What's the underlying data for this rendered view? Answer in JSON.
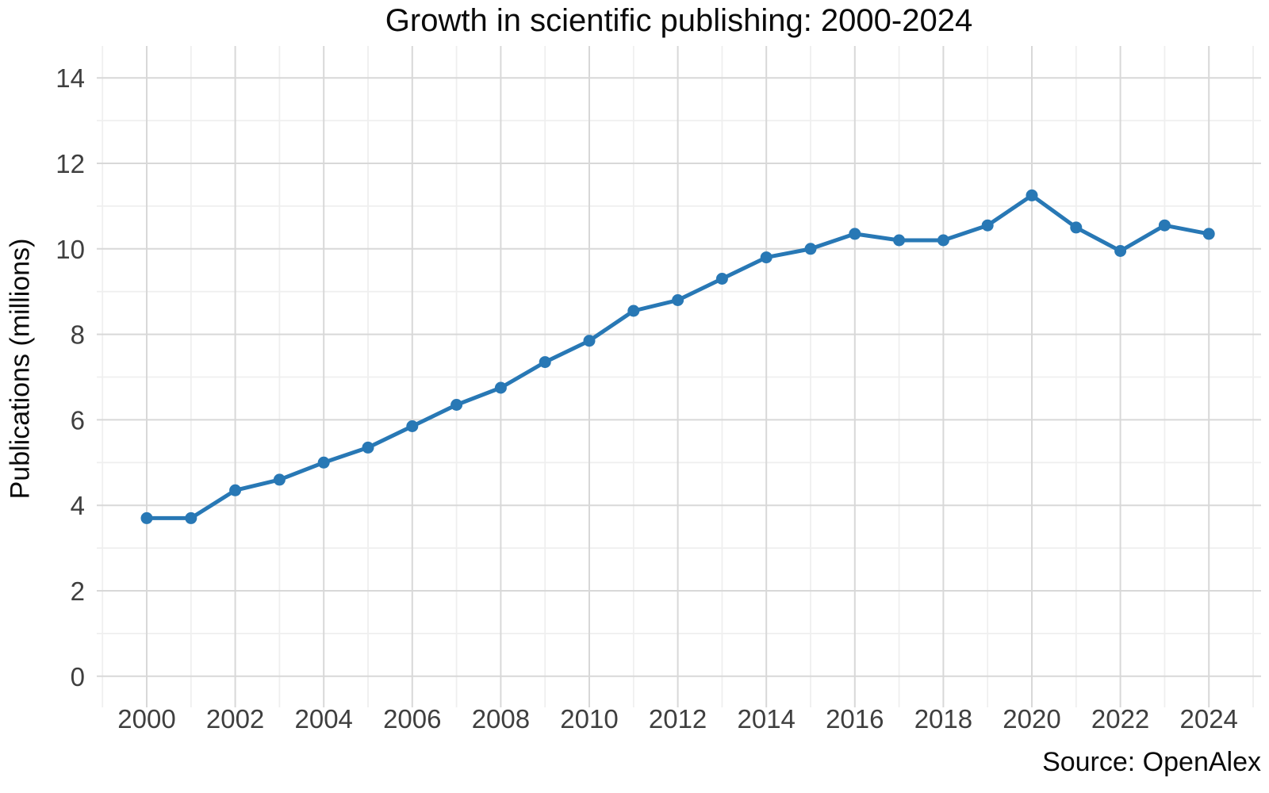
{
  "chart_data": {
    "type": "line",
    "title": "Growth in scientific publishing: 2000-2024",
    "xlabel": "",
    "ylabel": "Publications (millions)",
    "source_caption": "Source: OpenAlex",
    "x": [
      2000,
      2001,
      2002,
      2003,
      2004,
      2005,
      2006,
      2007,
      2008,
      2009,
      2010,
      2011,
      2012,
      2013,
      2014,
      2015,
      2016,
      2017,
      2018,
      2019,
      2020,
      2021,
      2022,
      2023,
      2024
    ],
    "series": [
      {
        "name": "Publications (millions)",
        "values": [
          3.7,
          3.7,
          4.35,
          4.6,
          5.0,
          5.35,
          5.85,
          6.35,
          6.75,
          7.35,
          7.85,
          8.55,
          8.8,
          9.3,
          9.8,
          10.0,
          10.35,
          10.2,
          10.2,
          10.55,
          11.25,
          10.5,
          9.95,
          10.55,
          10.35
        ]
      }
    ],
    "x_ticks": [
      2000,
      2002,
      2004,
      2006,
      2008,
      2010,
      2012,
      2014,
      2016,
      2018,
      2020,
      2022,
      2024
    ],
    "y_ticks": [
      0,
      2,
      4,
      6,
      8,
      10,
      12,
      14
    ],
    "ylim": [
      0,
      14
    ],
    "grid": "major and minor, light gray, no axis frame",
    "legend": "none",
    "colors": {
      "line": "#2878b5",
      "marker": "#2878b5",
      "grid_major": "#d8d8d8",
      "grid_minor": "#efefef",
      "tick_text": "#3f3f3f",
      "title_text": "#0b0b0b",
      "background": "#ffffff"
    }
  }
}
